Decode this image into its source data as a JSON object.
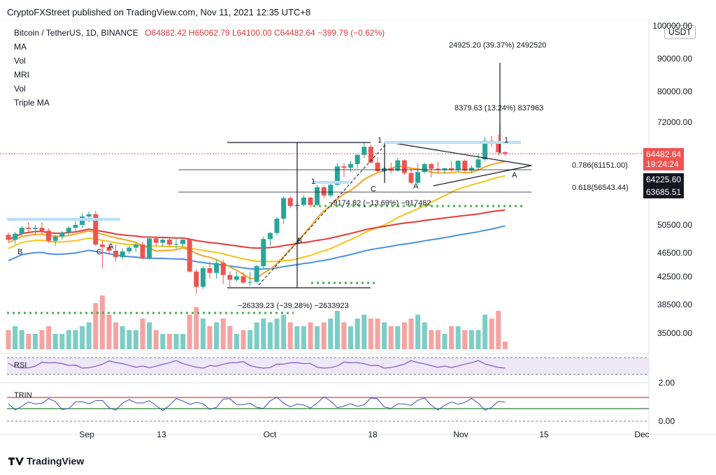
{
  "header": {
    "text": "CryptoFXStreet published on TradingView.com, Nov 11, 2021 12:35 UTC+8"
  },
  "legend": {
    "symbol": "Bitcoin / TetherUS, 1D, BINANCE",
    "ohlc": "O64882.42 H65062.79 L64100.00 C64482.64 −399.79 (−0.62%)",
    "indicators": [
      "MA",
      "Vol",
      "MRI",
      "Vol",
      "Triple MA"
    ]
  },
  "unit_button": "USDT",
  "price_tags": {
    "last_price": "64482.64",
    "countdown": "19:24:24",
    "level1": "64225.60",
    "level2": "63685.51"
  },
  "annotations": {
    "target_big": "24925.20 (39.37%) 2492520",
    "target_small": "8379.63 (13.24%) 837963",
    "fib_786": "0.786(61151.00)",
    "fib_618": "0.618(56543.44)",
    "drop_small": "−9174.82 (−13.69%) −917482",
    "drop_big": "−26339.23 (−39.28%) −2633923",
    "marker_1a": "1",
    "marker_1b": "1",
    "marker_1c": "1",
    "marker_A1": "A",
    "marker_A2": "A",
    "marker_A3": "A",
    "marker_B1": "B",
    "marker_B2": "B",
    "marker_C1": "C",
    "marker_C2": "C"
  },
  "indicators_panels": {
    "rsi_label": "RSI",
    "trin_label": "TRIN"
  },
  "footer": {
    "brand": "TradingView"
  },
  "colors": {
    "up": "#26a69a",
    "down": "#ef5350",
    "ma_orange": "#f5a623",
    "ma_yellow": "#f5c518",
    "ma_blue": "#4a90e2",
    "ma_red": "#e53935"
  },
  "chart_data": {
    "type": "candlestick",
    "scale": "log",
    "x_ticks": [
      "Sep",
      "13",
      "Oct",
      "18",
      "Nov",
      "15",
      "Dec"
    ],
    "y_ticks": [
      "100000.00",
      "90000.00",
      "80000.00",
      "72000.00",
      "50500.00",
      "46500.00",
      "42500.00",
      "38500.00",
      "35000.00"
    ],
    "rsi_ticks": [],
    "trin_ticks": [
      "2.00",
      "0.00"
    ],
    "candles": [
      [
        48800,
        49200,
        47600,
        48000
      ],
      [
        48000,
        49300,
        47300,
        49000
      ],
      [
        49000,
        50300,
        48600,
        50000
      ],
      [
        50000,
        51000,
        49300,
        49800
      ],
      [
        49800,
        50500,
        48800,
        50000
      ],
      [
        50000,
        51000,
        48900,
        49500
      ],
      [
        49500,
        49900,
        47500,
        47800
      ],
      [
        47800,
        48800,
        47000,
        48500
      ],
      [
        48500,
        49500,
        48000,
        49200
      ],
      [
        49200,
        50300,
        48800,
        50000
      ],
      [
        50000,
        51200,
        49200,
        50500
      ],
      [
        50500,
        52500,
        50000,
        52000
      ],
      [
        52000,
        52900,
        51000,
        52400
      ],
      [
        52400,
        53000,
        47000,
        47200
      ],
      [
        47200,
        47800,
        43500,
        46800
      ],
      [
        46800,
        47300,
        45500,
        46200
      ],
      [
        46200,
        47200,
        44500,
        45200
      ],
      [
        45200,
        46600,
        44800,
        46100
      ],
      [
        46100,
        47000,
        45700,
        46700
      ],
      [
        46700,
        47500,
        46000,
        47200
      ],
      [
        47200,
        47700,
        44800,
        45000
      ],
      [
        45000,
        48300,
        44800,
        48200
      ],
      [
        48200,
        48600,
        47000,
        47500
      ],
      [
        47500,
        48200,
        46800,
        48000
      ],
      [
        48000,
        48400,
        46900,
        47200
      ],
      [
        47200,
        48100,
        46500,
        47300
      ],
      [
        47300,
        48400,
        46800,
        48000
      ],
      [
        48000,
        48200,
        42800,
        43000
      ],
      [
        43000,
        43400,
        39800,
        40800
      ],
      [
        40800,
        43800,
        40500,
        43500
      ],
      [
        43500,
        44500,
        42000,
        42800
      ],
      [
        42800,
        44800,
        42000,
        44300
      ],
      [
        44300,
        44800,
        41200,
        42500
      ],
      [
        42500,
        43000,
        40800,
        41800
      ],
      [
        41800,
        43000,
        41500,
        42300
      ],
      [
        42300,
        42900,
        41200,
        41400
      ],
      [
        41400,
        43000,
        40900,
        41500
      ],
      [
        41500,
        44000,
        41300,
        43800
      ],
      [
        43800,
        48500,
        43500,
        48100
      ],
      [
        48100,
        49300,
        47000,
        49100
      ],
      [
        49100,
        51900,
        48700,
        51600
      ],
      [
        51600,
        55700,
        50700,
        55400
      ],
      [
        55400,
        55800,
        53500,
        53900
      ],
      [
        53900,
        54800,
        53000,
        54100
      ],
      [
        54100,
        56000,
        53800,
        55500
      ],
      [
        55500,
        55600,
        53600,
        54100
      ],
      [
        54100,
        58000,
        53900,
        57500
      ],
      [
        57500,
        57900,
        55400,
        55900
      ],
      [
        55900,
        58500,
        55600,
        58000
      ],
      [
        58000,
        62500,
        57800,
        61800
      ],
      [
        61800,
        62500,
        59600,
        61500
      ],
      [
        61500,
        63000,
        60600,
        62300
      ],
      [
        62300,
        64400,
        61400,
        64300
      ],
      [
        64300,
        67000,
        63600,
        66100
      ],
      [
        66100,
        66600,
        62400,
        62600
      ],
      [
        62600,
        63800,
        60600,
        60800
      ],
      [
        60800,
        61800,
        60200,
        61400
      ],
      [
        61400,
        62600,
        60300,
        60900
      ],
      [
        60900,
        63700,
        60700,
        63100
      ],
      [
        63100,
        63300,
        60000,
        60400
      ],
      [
        60400,
        61400,
        58100,
        58400
      ],
      [
        58400,
        62500,
        58000,
        60600
      ],
      [
        60600,
        62500,
        60300,
        62300
      ],
      [
        62300,
        62500,
        59500,
        61300
      ],
      [
        61300,
        62800,
        60400,
        61000
      ],
      [
        61000,
        61500,
        60200,
        61400
      ],
      [
        61400,
        63000,
        60700,
        61000
      ],
      [
        61000,
        63100,
        60700,
        63000
      ],
      [
        63000,
        63300,
        60600,
        60900
      ],
      [
        60900,
        62000,
        60400,
        61500
      ],
      [
        61500,
        64500,
        61100,
        63300
      ],
      [
        63300,
        68300,
        62900,
        67500
      ],
      [
        67500,
        68600,
        66100,
        67300
      ],
      [
        67300,
        69000,
        64200,
        64900
      ],
      [
        64900,
        65060,
        64100,
        64480
      ]
    ],
    "volume": [
      5,
      6,
      5,
      4,
      4,
      5,
      6,
      4,
      4,
      5,
      5,
      6,
      7,
      12,
      14,
      9,
      7,
      6,
      5,
      5,
      8,
      7,
      5,
      4,
      4,
      4,
      4,
      9,
      11,
      8,
      6,
      7,
      8,
      6,
      4,
      5,
      5,
      7,
      8,
      7,
      8,
      9,
      7,
      6,
      6,
      7,
      6,
      7,
      8,
      10,
      7,
      6,
      8,
      9,
      8,
      8,
      7,
      6,
      6,
      7,
      8,
      9,
      7,
      5,
      5,
      4,
      6,
      6,
      5,
      5,
      5,
      9,
      8,
      10,
      2
    ]
  }
}
